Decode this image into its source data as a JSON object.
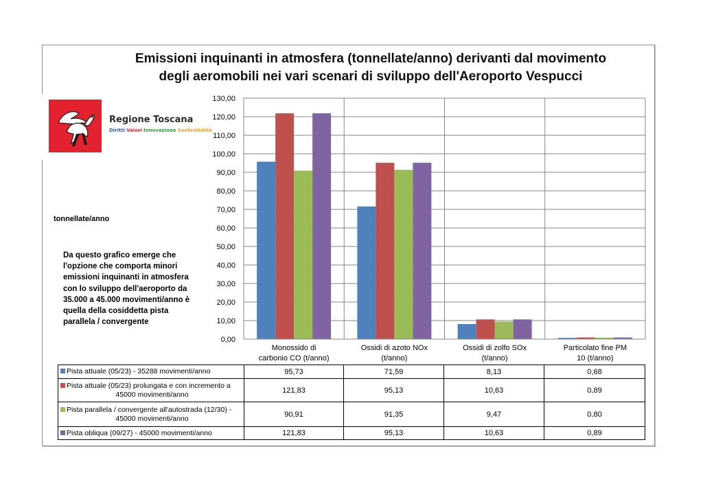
{
  "title": {
    "line1": "Emissioni inquinanti in atmosfera (tonnellate/anno) derivanti dal movimento",
    "line2": "degli aeromobili nei vari scenari di sviluppo dell'Aeroporto Vespucci"
  },
  "logo": {
    "name": "Regione Toscana",
    "tagline": [
      "Diritti",
      "Valori",
      "Innovazione",
      "Sostenibilità"
    ],
    "tagline_colors": [
      "#2f5fb3",
      "#e4222f",
      "#2e9a3c",
      "#f0a21c"
    ],
    "icon": "pegasus-icon"
  },
  "unit_label": "tonnellate/anno",
  "note": "Da questo grafico emerge che l'opzione che comporta minori emissioni inquinanti in atmosfera con lo sviluppo dell'aeroporto da 35.000 a 45.000 movimenti/anno è quella della cosiddetta pista parallela / convergente",
  "chart_data": {
    "type": "bar",
    "title": "Emissioni inquinanti in atmosfera (tonnellate/anno) derivanti dal movimento degli aeromobili nei vari scenari di sviluppo dell'Aeroporto Vespucci",
    "ylabel": "tonnellate/anno",
    "ylim": [
      0,
      130
    ],
    "yticks": [
      "0,00",
      "10,00",
      "20,00",
      "30,00",
      "40,00",
      "50,00",
      "60,00",
      "70,00",
      "80,00",
      "90,00",
      "100,00",
      "110,00",
      "120,00",
      "130,00"
    ],
    "grid": true,
    "legend": "table-left",
    "categories": [
      [
        "Monossido di",
        "carbonio CO (t/anno)"
      ],
      [
        "Ossidi di azoto NOx",
        "(t/anno)"
      ],
      [
        "Ossidi di zolfo SOx",
        "(t/anno)"
      ],
      [
        "Particolato fine PM",
        "10  (t/anno)"
      ]
    ],
    "series": [
      {
        "name": "Pista attuale (05/23) - 35288 movimenti/anno",
        "name_lines": [
          "Pista attuale (05/23) - 35288 movimenti/anno"
        ],
        "color": "#4f81bd",
        "values": [
          95.73,
          71.59,
          8.13,
          0.68
        ],
        "labels": [
          "95,73",
          "71,59",
          "8,13",
          "0,68"
        ]
      },
      {
        "name": "Pista attuale (05/23) prolungata e con incremento a 45000 movimenti/anno",
        "name_lines": [
          "Pista attuale (05/23) prolungata e con incremento a",
          "45000 movimenti/anno"
        ],
        "color": "#c0504d",
        "values": [
          121.83,
          95.13,
          10.63,
          0.89
        ],
        "labels": [
          "121,83",
          "95,13",
          "10,63",
          "0,89"
        ]
      },
      {
        "name": "Pista parallela / convergente all'autostrada  (12/30) - 45000 movimenti/anno",
        "name_lines": [
          "Pista parallela / convergente all'autostrada  (12/30) -",
          "45000 movimenti/anno"
        ],
        "color": "#9bbb59",
        "values": [
          90.91,
          91.35,
          9.47,
          0.8
        ],
        "labels": [
          "90,91",
          "91,35",
          "9,47",
          "0,80"
        ]
      },
      {
        "name": "Pista obliqua (09/27) - 45000 movimenti/anno",
        "name_lines": [
          "Pista obliqua (09/27) - 45000 movimenti/anno"
        ],
        "color": "#8064a2",
        "values": [
          121.83,
          95.13,
          10.63,
          0.89
        ],
        "labels": [
          "121,83",
          "95,13",
          "10,63",
          "0,89"
        ]
      }
    ]
  }
}
